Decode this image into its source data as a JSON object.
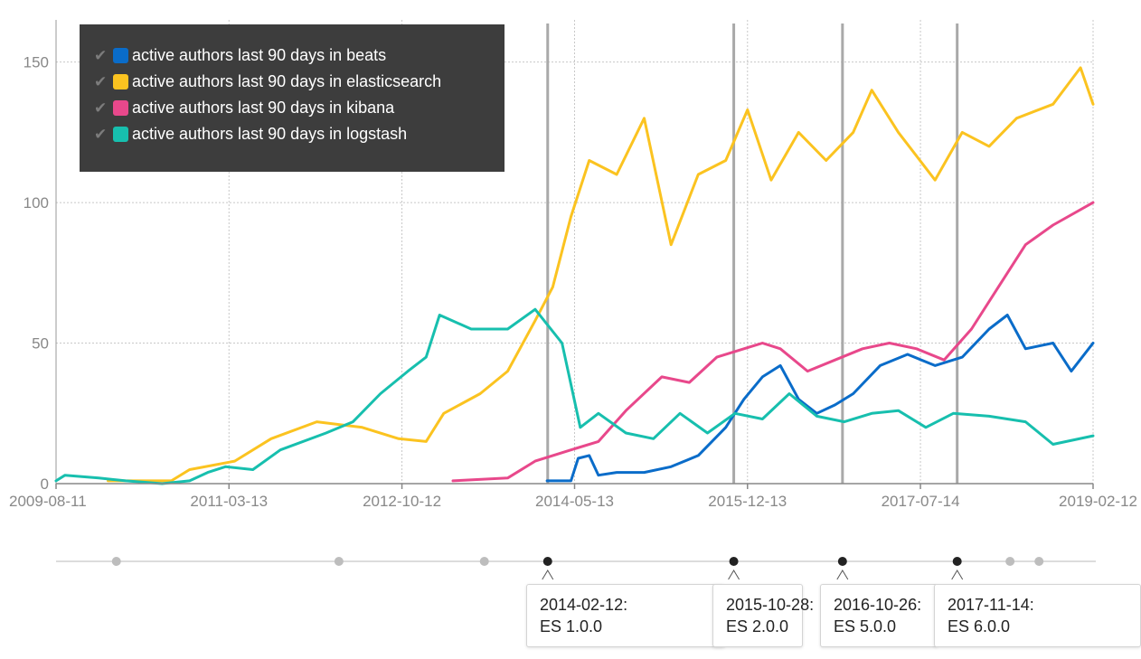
{
  "chart_data": {
    "type": "line",
    "x_range": [
      "2009-08-11",
      "2019-02-12"
    ],
    "ylim": [
      0,
      165
    ],
    "y_ticks": [
      0,
      50,
      100,
      150
    ],
    "x_ticks": [
      "2009-08-11",
      "2011-03-13",
      "2012-10-12",
      "2014-05-13",
      "2015-12-13",
      "2017-07-14",
      "2019-02-12"
    ],
    "grid": true,
    "legend_position": "top-left",
    "series": [
      {
        "name": "active authors last 90 days in beats",
        "color": "#0a6cc9",
        "points": [
          [
            "2014-02-10",
            1
          ],
          [
            "2014-05-01",
            1
          ],
          [
            "2014-05-25",
            9
          ],
          [
            "2014-07-01",
            10
          ],
          [
            "2014-08-01",
            3
          ],
          [
            "2014-10-01",
            4
          ],
          [
            "2015-01-01",
            4
          ],
          [
            "2015-04-01",
            6
          ],
          [
            "2015-07-01",
            10
          ],
          [
            "2015-10-01",
            20
          ],
          [
            "2015-12-01",
            30
          ],
          [
            "2016-02-01",
            38
          ],
          [
            "2016-04-01",
            42
          ],
          [
            "2016-06-01",
            30
          ],
          [
            "2016-08-01",
            25
          ],
          [
            "2016-10-01",
            28
          ],
          [
            "2016-12-01",
            32
          ],
          [
            "2017-03-01",
            42
          ],
          [
            "2017-06-01",
            46
          ],
          [
            "2017-09-01",
            42
          ],
          [
            "2017-12-01",
            45
          ],
          [
            "2018-03-01",
            55
          ],
          [
            "2018-05-01",
            60
          ],
          [
            "2018-07-01",
            48
          ],
          [
            "2018-10-01",
            50
          ],
          [
            "2018-12-01",
            40
          ],
          [
            "2019-02-12",
            50
          ]
        ]
      },
      {
        "name": "active authors last 90 days in elasticsearch",
        "color": "#fbc320",
        "points": [
          [
            "2010-02-01",
            1
          ],
          [
            "2010-09-01",
            1
          ],
          [
            "2010-11-01",
            5
          ],
          [
            "2011-04-01",
            8
          ],
          [
            "2011-08-01",
            16
          ],
          [
            "2012-01-01",
            22
          ],
          [
            "2012-06-01",
            20
          ],
          [
            "2012-10-01",
            16
          ],
          [
            "2013-01-01",
            15
          ],
          [
            "2013-03-01",
            25
          ],
          [
            "2013-07-01",
            32
          ],
          [
            "2013-10-01",
            40
          ],
          [
            "2014-01-01",
            58
          ],
          [
            "2014-03-01",
            70
          ],
          [
            "2014-05-01",
            95
          ],
          [
            "2014-07-01",
            115
          ],
          [
            "2014-10-01",
            110
          ],
          [
            "2015-01-01",
            130
          ],
          [
            "2015-04-01",
            85
          ],
          [
            "2015-07-01",
            110
          ],
          [
            "2015-10-01",
            115
          ],
          [
            "2015-12-13",
            133
          ],
          [
            "2016-03-01",
            108
          ],
          [
            "2016-06-01",
            125
          ],
          [
            "2016-09-01",
            115
          ],
          [
            "2016-12-01",
            125
          ],
          [
            "2017-02-01",
            140
          ],
          [
            "2017-05-01",
            125
          ],
          [
            "2017-09-01",
            108
          ],
          [
            "2017-12-01",
            125
          ],
          [
            "2018-03-01",
            120
          ],
          [
            "2018-06-01",
            130
          ],
          [
            "2018-10-01",
            135
          ],
          [
            "2019-01-01",
            148
          ],
          [
            "2019-02-12",
            135
          ]
        ]
      },
      {
        "name": "active authors last 90 days in kibana",
        "color": "#e8488b",
        "points": [
          [
            "2013-04-01",
            1
          ],
          [
            "2013-10-01",
            2
          ],
          [
            "2014-01-01",
            8
          ],
          [
            "2014-05-01",
            12
          ],
          [
            "2014-08-01",
            15
          ],
          [
            "2014-11-01",
            26
          ],
          [
            "2015-03-01",
            38
          ],
          [
            "2015-06-01",
            36
          ],
          [
            "2015-09-01",
            45
          ],
          [
            "2015-12-01",
            48
          ],
          [
            "2016-02-01",
            50
          ],
          [
            "2016-04-01",
            48
          ],
          [
            "2016-07-01",
            40
          ],
          [
            "2016-10-01",
            44
          ],
          [
            "2017-01-01",
            48
          ],
          [
            "2017-04-01",
            50
          ],
          [
            "2017-07-01",
            48
          ],
          [
            "2017-10-01",
            44
          ],
          [
            "2018-01-01",
            55
          ],
          [
            "2018-04-01",
            70
          ],
          [
            "2018-07-01",
            85
          ],
          [
            "2018-10-01",
            92
          ],
          [
            "2019-02-12",
            100
          ]
        ]
      },
      {
        "name": "active authors last 90 days in logstash",
        "color": "#17bfae",
        "points": [
          [
            "2009-08-11",
            1
          ],
          [
            "2009-09-10",
            3
          ],
          [
            "2010-01-01",
            2
          ],
          [
            "2010-04-01",
            1
          ],
          [
            "2010-08-01",
            0
          ],
          [
            "2010-11-01",
            1
          ],
          [
            "2011-01-01",
            4
          ],
          [
            "2011-03-01",
            6
          ],
          [
            "2011-06-01",
            5
          ],
          [
            "2011-09-01",
            12
          ],
          [
            "2012-02-01",
            18
          ],
          [
            "2012-05-01",
            22
          ],
          [
            "2012-08-01",
            32
          ],
          [
            "2012-11-01",
            40
          ],
          [
            "2013-01-01",
            45
          ],
          [
            "2013-02-15",
            60
          ],
          [
            "2013-06-01",
            55
          ],
          [
            "2013-10-01",
            55
          ],
          [
            "2014-01-01",
            62
          ],
          [
            "2014-04-01",
            50
          ],
          [
            "2014-06-01",
            20
          ],
          [
            "2014-08-01",
            25
          ],
          [
            "2014-11-01",
            18
          ],
          [
            "2015-02-01",
            16
          ],
          [
            "2015-05-01",
            25
          ],
          [
            "2015-08-01",
            18
          ],
          [
            "2015-11-01",
            25
          ],
          [
            "2016-02-01",
            23
          ],
          [
            "2016-05-01",
            32
          ],
          [
            "2016-08-01",
            24
          ],
          [
            "2016-11-01",
            22
          ],
          [
            "2017-02-01",
            25
          ],
          [
            "2017-05-01",
            26
          ],
          [
            "2017-08-01",
            20
          ],
          [
            "2017-11-01",
            25
          ],
          [
            "2018-03-01",
            24
          ],
          [
            "2018-07-01",
            22
          ],
          [
            "2018-10-01",
            14
          ],
          [
            "2019-02-12",
            17
          ]
        ]
      }
    ],
    "annotations": [
      {
        "date": "2014-02-12",
        "label": "ES 1.0.0"
      },
      {
        "date": "2015-10-28",
        "label": "ES 2.0.0"
      },
      {
        "date": "2016-10-26",
        "label": "ES 5.0.0"
      },
      {
        "date": "2017-11-14",
        "label": "ES 6.0.0"
      }
    ],
    "timeline_dots": [
      "2010-03-01",
      "2012-03-15",
      "2013-07-15",
      "2014-02-12",
      "2015-10-28",
      "2016-10-26",
      "2017-11-14",
      "2018-05-10",
      "2018-08-15"
    ]
  },
  "legend": [
    {
      "label": "active authors last 90 days in beats",
      "check": "✔"
    },
    {
      "label": "active authors last 90 days in elasticsearch",
      "check": "✔"
    },
    {
      "label": "active authors last 90 days in kibana",
      "check": "✔"
    },
    {
      "label": "active authors last 90 days in logstash",
      "check": "✔"
    }
  ],
  "release_cards": [
    {
      "date_label": "2014-02-12:",
      "version": "ES 1.0.0"
    },
    {
      "date_label": "2015-10-28:",
      "version": "ES 2.0.0"
    },
    {
      "date_label": "2016-10-26:",
      "version": "ES 5.0.0"
    },
    {
      "date_label": "2017-11-14:",
      "version": "ES 6.0.0"
    }
  ]
}
